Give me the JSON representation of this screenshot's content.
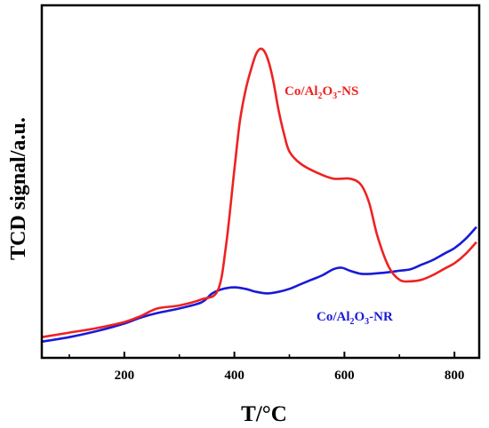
{
  "chart_data": {
    "type": "line",
    "xlabel": "T/°C",
    "ylabel": "TCD signal/a.u.",
    "xlim": [
      50,
      845
    ],
    "ylim": [
      0,
      100
    ],
    "x_ticks": [
      200,
      400,
      600,
      800
    ],
    "x_tick_labels": [
      "200",
      "400",
      "600",
      "800"
    ],
    "y_ticks_shown": false,
    "grid": false,
    "legend": "inline-labels",
    "series": [
      {
        "name": "Co/Al2O3-NS",
        "label_main": "Co/Al",
        "label_sub": "2",
        "label_mid": "O",
        "label_sub2": "3",
        "label_tail": "-NS",
        "color": "#ee2222",
        "x": [
          50,
          100,
          150,
          200,
          230,
          260,
          300,
          340,
          370,
          385,
          400,
          410,
          420,
          430,
          440,
          450,
          460,
          470,
          480,
          490,
          500,
          520,
          550,
          580,
          610,
          630,
          645,
          660,
          680,
          700,
          720,
          740,
          760,
          780,
          800,
          820,
          840
        ],
        "values": [
          4.5,
          6.0,
          7.5,
          9.5,
          11.5,
          14.0,
          15.0,
          17.0,
          20.0,
          35.0,
          60.0,
          76.0,
          86.0,
          93.0,
          98.5,
          100.0,
          97.0,
          90.0,
          80.0,
          72.0,
          66.0,
          62.0,
          59.0,
          57.0,
          57.0,
          55.0,
          49.0,
          38.0,
          28.0,
          23.5,
          23.0,
          23.5,
          25.0,
          27.0,
          29.0,
          32.0,
          36.0
        ]
      },
      {
        "name": "Co/Al2O3-NR",
        "label_main": "Co/Al",
        "label_sub": "2",
        "label_mid": "O",
        "label_sub2": "3",
        "label_tail": "-NR",
        "color": "#1a1ad6",
        "x": [
          50,
          100,
          150,
          200,
          230,
          260,
          300,
          340,
          360,
          380,
          400,
          420,
          440,
          460,
          480,
          500,
          520,
          540,
          560,
          580,
          595,
          610,
          630,
          650,
          680,
          700,
          720,
          740,
          760,
          780,
          800,
          820,
          840
        ],
        "values": [
          3.0,
          4.5,
          6.5,
          9.0,
          11.0,
          12.5,
          14.0,
          16.0,
          19.0,
          20.5,
          21.0,
          20.5,
          19.5,
          19.0,
          19.5,
          20.5,
          22.0,
          23.5,
          25.0,
          27.0,
          27.5,
          26.5,
          25.5,
          25.5,
          26.0,
          26.5,
          27.0,
          28.5,
          30.0,
          32.0,
          34.0,
          37.0,
          41.0
        ]
      }
    ]
  }
}
